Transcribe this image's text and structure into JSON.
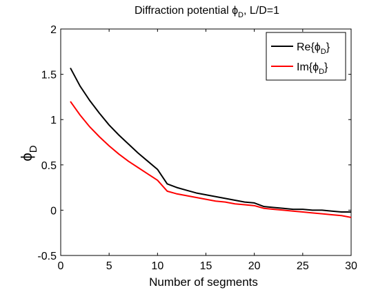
{
  "chart_data": {
    "type": "line",
    "title": "Diffraction potential ϕD, L/D=1",
    "title_parts": {
      "before": "Diffraction potential ϕ",
      "subscript": "D",
      "after": ", L/D=1"
    },
    "xlabel": "Number of segments",
    "ylabel": "ϕD",
    "ylabel_parts": {
      "symbol": "ϕ",
      "subscript": "D"
    },
    "xlim": [
      0,
      30
    ],
    "ylim": [
      -0.5,
      2
    ],
    "xticks": [
      0,
      5,
      10,
      15,
      20,
      25,
      30
    ],
    "yticks": [
      -0.5,
      0,
      0.5,
      1,
      1.5,
      2
    ],
    "ytick_labels": [
      "-0.5",
      "0",
      "0.5",
      "1",
      "1.5",
      "2"
    ],
    "grid": false,
    "legend_position": "top-right",
    "series": [
      {
        "name": "Re{ϕD}",
        "name_parts": {
          "before": "Re{ϕ",
          "subscript": "D",
          "after": "}"
        },
        "color": "#000000",
        "x": [
          1,
          2,
          3,
          4,
          5,
          6,
          7,
          8,
          9,
          10,
          11,
          12,
          13,
          14,
          15,
          16,
          17,
          18,
          19,
          20,
          21,
          22,
          23,
          24,
          25,
          26,
          27,
          28,
          29,
          30
        ],
        "y": [
          1.57,
          1.37,
          1.21,
          1.07,
          0.94,
          0.83,
          0.73,
          0.63,
          0.54,
          0.45,
          0.29,
          0.25,
          0.22,
          0.19,
          0.17,
          0.15,
          0.13,
          0.11,
          0.09,
          0.08,
          0.04,
          0.03,
          0.02,
          0.01,
          0.01,
          0.0,
          0.0,
          -0.01,
          -0.02,
          -0.02
        ]
      },
      {
        "name": "Im{ϕD}",
        "name_parts": {
          "before": "Im{ϕ",
          "subscript": "D",
          "after": "}"
        },
        "color": "#ff0000",
        "x": [
          1,
          2,
          3,
          4,
          5,
          6,
          7,
          8,
          9,
          10,
          11,
          12,
          13,
          14,
          15,
          16,
          17,
          18,
          19,
          20,
          21,
          22,
          23,
          24,
          25,
          26,
          27,
          28,
          29,
          30
        ],
        "y": [
          1.2,
          1.05,
          0.92,
          0.81,
          0.71,
          0.62,
          0.54,
          0.47,
          0.4,
          0.33,
          0.21,
          0.18,
          0.16,
          0.14,
          0.12,
          0.1,
          0.09,
          0.07,
          0.06,
          0.05,
          0.02,
          0.01,
          0.0,
          -0.01,
          -0.02,
          -0.03,
          -0.04,
          -0.05,
          -0.06,
          -0.08
        ]
      }
    ]
  }
}
